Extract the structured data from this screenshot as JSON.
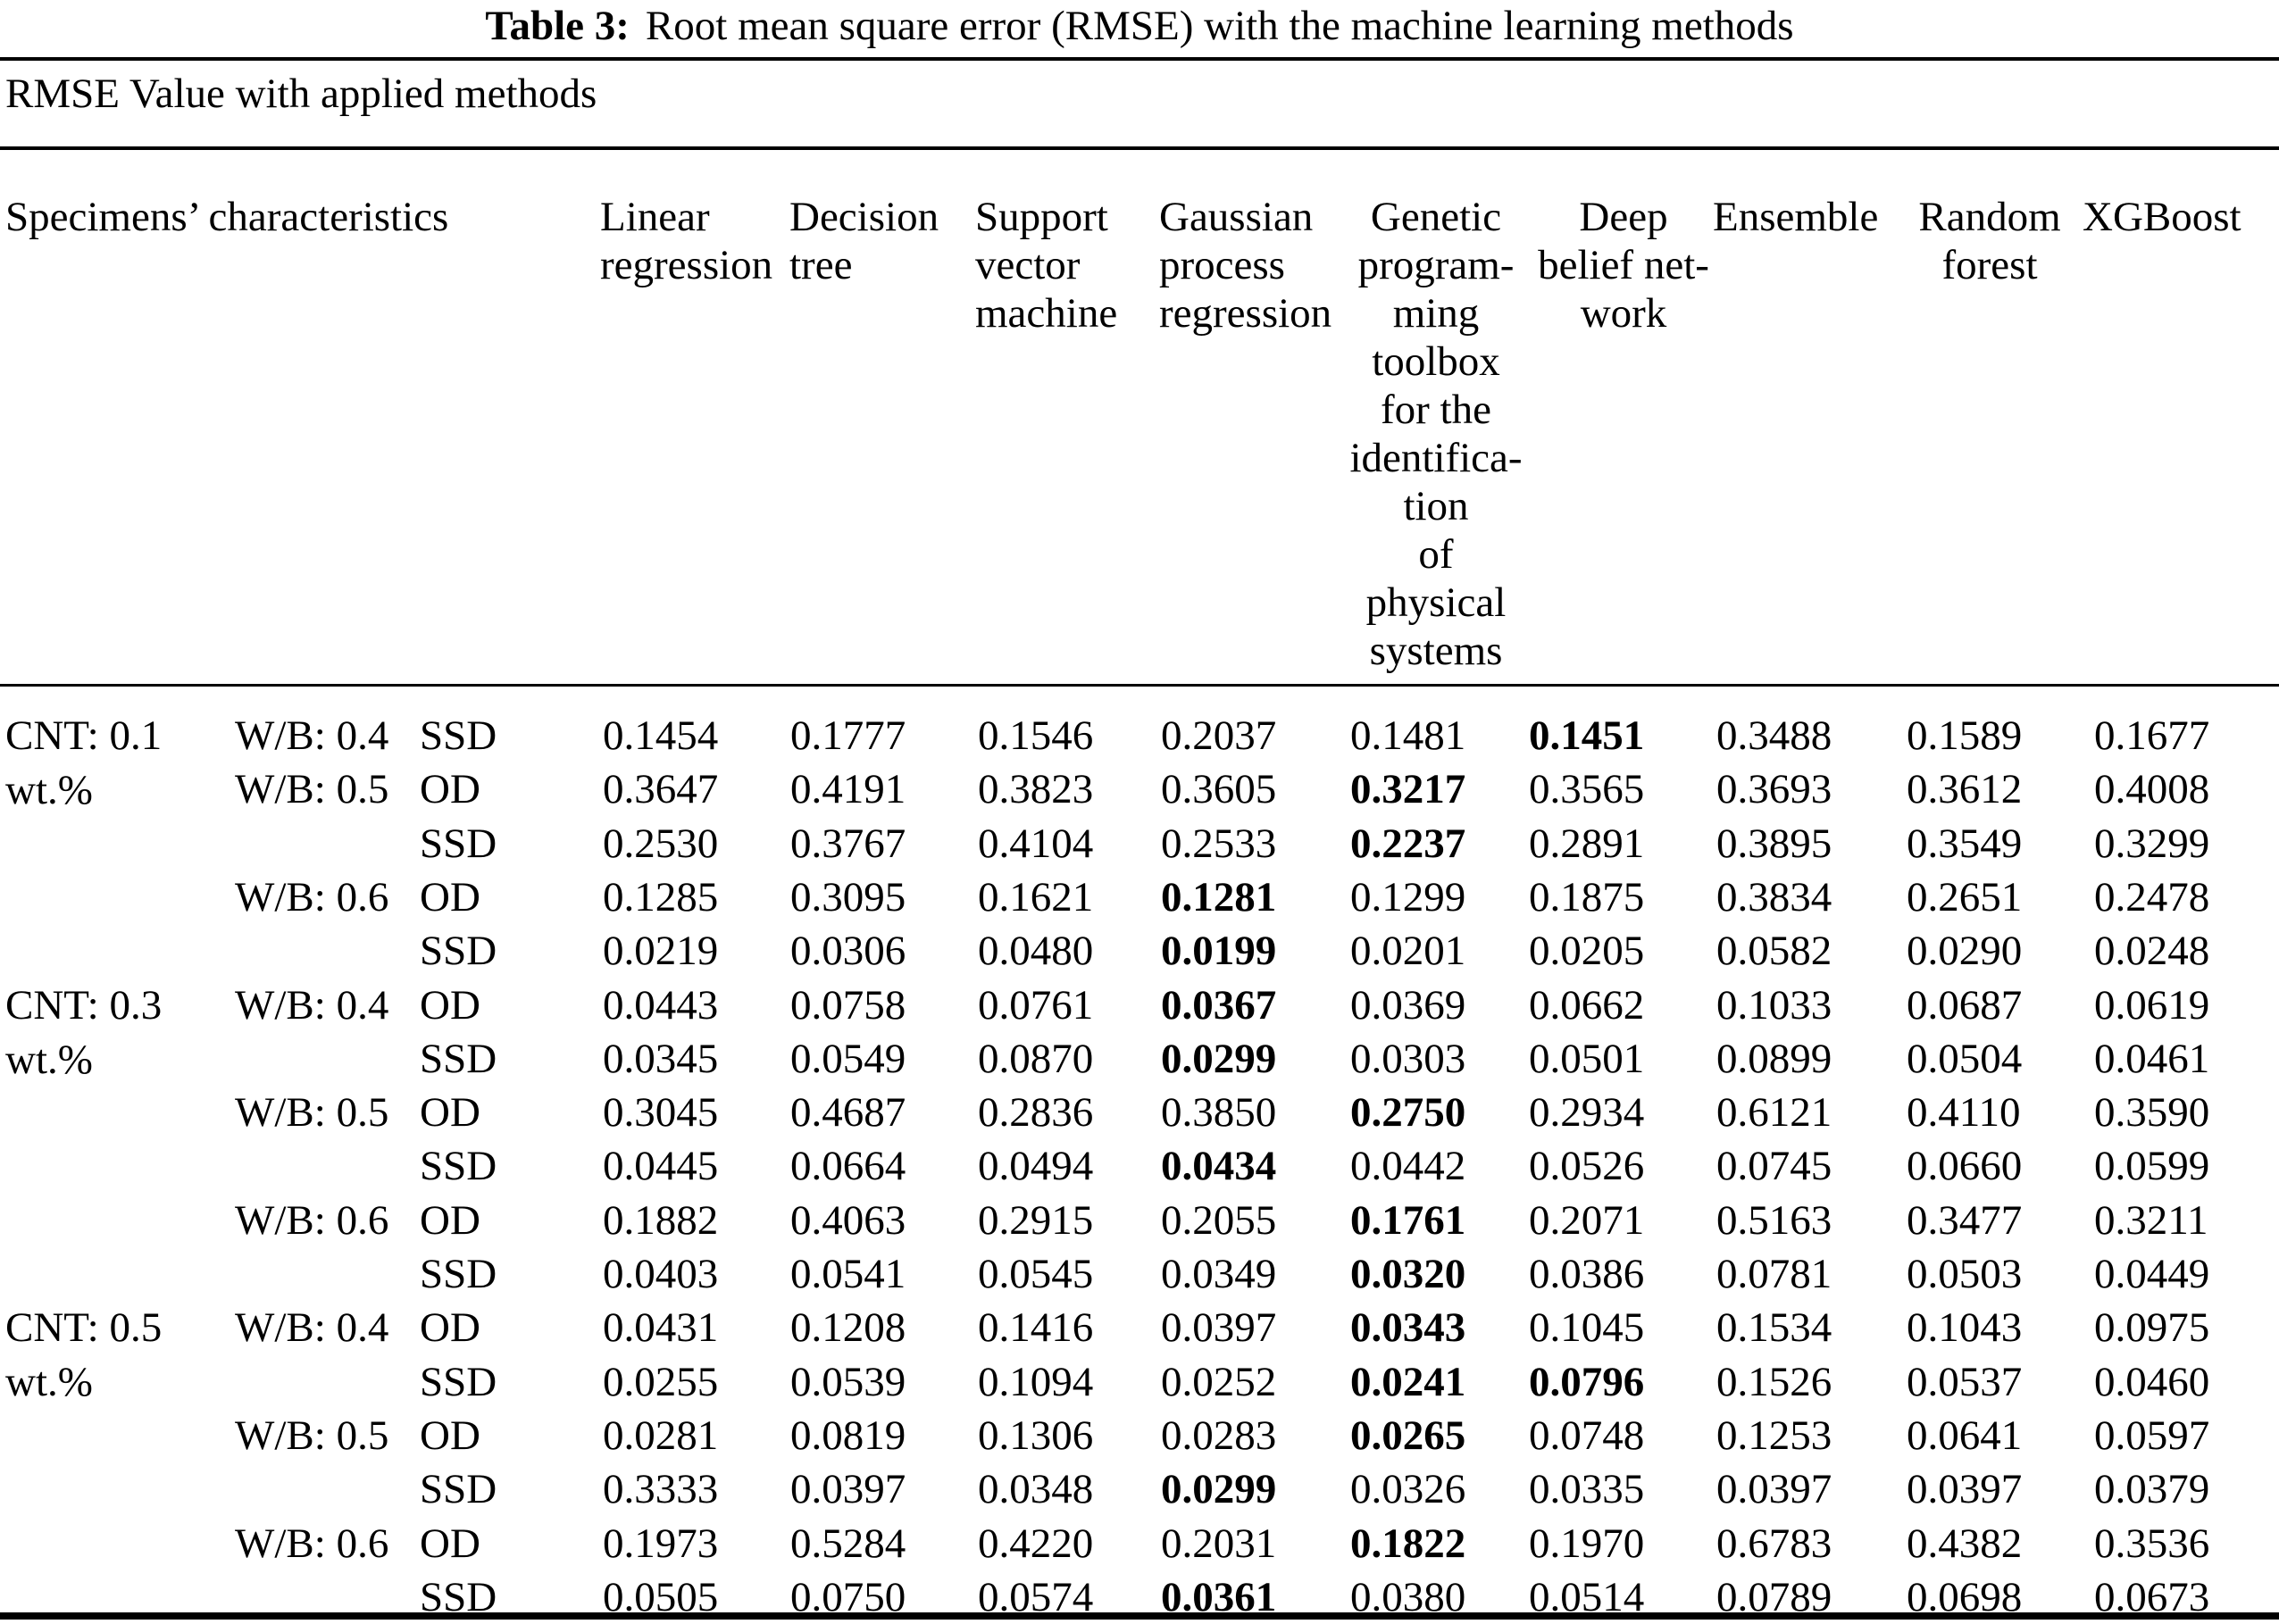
{
  "page": {
    "background_color": "#ffffff",
    "text_color": "#000000"
  },
  "table": {
    "title": {
      "label": "Table 3:",
      "text": "Root mean square error (RMSE) with the machine learning methods"
    },
    "subtitle": "RMSE Value with applied methods",
    "row_group_header": "Specimens’ characteristics",
    "method_headers": [
      {
        "name": "linear-regression",
        "lines": [
          "Linear",
          "regression"
        ],
        "align": "left"
      },
      {
        "name": "decision-tree",
        "lines": [
          "Decision",
          "tree"
        ],
        "align": "left"
      },
      {
        "name": "support-vector-machine",
        "lines": [
          "Support",
          "vector",
          "machine"
        ],
        "align": "left"
      },
      {
        "name": "gaussian-process-regression",
        "lines": [
          "Gaussian",
          "process",
          "regression"
        ],
        "align": "left"
      },
      {
        "name": "genetic-programming-toolbox",
        "lines": [
          "Genetic",
          "program-",
          "ming",
          "toolbox",
          "for the",
          "identifica-",
          "tion",
          "of",
          "physical",
          "systems"
        ],
        "align": "center"
      },
      {
        "name": "deep-belief-network",
        "lines": [
          "Deep",
          "belief net-",
          "work"
        ],
        "align": "center"
      },
      {
        "name": "ensemble",
        "lines": [
          "Ensemble"
        ],
        "align": "left"
      },
      {
        "name": "random-forest",
        "lines": [
          "Random",
          "forest"
        ],
        "align": "center"
      },
      {
        "name": "xgboost",
        "lines": [
          "XGBoost"
        ],
        "align": "left"
      }
    ],
    "rows": [
      {
        "cnt": [
          "CNT: 0.1",
          "wt.%"
        ],
        "wb": "W/B: 0.4",
        "cond": "SSD",
        "values": [
          "0.1454",
          "0.1777",
          "0.1546",
          "0.2037",
          "0.1481",
          "0.1451",
          "0.3488",
          "0.1589",
          "0.1677"
        ],
        "bold": [
          5
        ]
      },
      {
        "wb": "W/B: 0.5",
        "cond": "OD",
        "values": [
          "0.3647",
          "0.4191",
          "0.3823",
          "0.3605",
          "0.3217",
          "0.3565",
          "0.3693",
          "0.3612",
          "0.4008"
        ],
        "bold": [
          4
        ]
      },
      {
        "cond": "SSD",
        "values": [
          "0.2530",
          "0.3767",
          "0.4104",
          "0.2533",
          "0.2237",
          "0.2891",
          "0.3895",
          "0.3549",
          "0.3299"
        ],
        "bold": [
          4
        ]
      },
      {
        "wb": "W/B: 0.6",
        "cond": "OD",
        "values": [
          "0.1285",
          "0.3095",
          "0.1621",
          "0.1281",
          "0.1299",
          "0.1875",
          "0.3834",
          "0.2651",
          "0.2478"
        ],
        "bold": [
          3
        ]
      },
      {
        "cond": "SSD",
        "values": [
          "0.0219",
          "0.0306",
          "0.0480",
          "0.0199",
          "0.0201",
          "0.0205",
          "0.0582",
          "0.0290",
          "0.0248"
        ],
        "bold": [
          3
        ]
      },
      {
        "cnt": [
          "CNT: 0.3",
          "wt.%"
        ],
        "wb": "W/B: 0.4",
        "cond": "OD",
        "values": [
          "0.0443",
          "0.0758",
          "0.0761",
          "0.0367",
          "0.0369",
          "0.0662",
          "0.1033",
          "0.0687",
          "0.0619"
        ],
        "bold": [
          3
        ]
      },
      {
        "cond": "SSD",
        "values": [
          "0.0345",
          "0.0549",
          "0.0870",
          "0.0299",
          "0.0303",
          "0.0501",
          "0.0899",
          "0.0504",
          "0.0461"
        ],
        "bold": [
          3
        ]
      },
      {
        "wb": "W/B: 0.5",
        "cond": "OD",
        "values": [
          "0.3045",
          "0.4687",
          "0.2836",
          "0.3850",
          "0.2750",
          "0.2934",
          "0.6121",
          "0.4110",
          "0.3590"
        ],
        "bold": [
          4
        ]
      },
      {
        "cond": "SSD",
        "values": [
          "0.0445",
          "0.0664",
          "0.0494",
          "0.0434",
          "0.0442",
          "0.0526",
          "0.0745",
          "0.0660",
          "0.0599"
        ],
        "bold": [
          3
        ]
      },
      {
        "wb": "W/B: 0.6",
        "cond": "OD",
        "values": [
          "0.1882",
          "0.4063",
          "0.2915",
          "0.2055",
          "0.1761",
          "0.2071",
          "0.5163",
          "0.3477",
          "0.3211"
        ],
        "bold": [
          4
        ]
      },
      {
        "cond": "SSD",
        "values": [
          "0.0403",
          "0.0541",
          "0.0545",
          "0.0349",
          "0.0320",
          "0.0386",
          "0.0781",
          "0.0503",
          "0.0449"
        ],
        "bold": [
          4
        ]
      },
      {
        "cnt": [
          "CNT: 0.5",
          "wt.%"
        ],
        "wb": "W/B: 0.4",
        "cond": "OD",
        "values": [
          "0.0431",
          "0.1208",
          "0.1416",
          "0.0397",
          "0.0343",
          "0.1045",
          "0.1534",
          "0.1043",
          "0.0975"
        ],
        "bold": [
          4
        ]
      },
      {
        "cond": "SSD",
        "values": [
          "0.0255",
          "0.0539",
          "0.1094",
          "0.0252",
          "0.0241",
          "0.0796",
          "0.1526",
          "0.0537",
          "0.0460"
        ],
        "bold": [
          4,
          5
        ]
      },
      {
        "wb": "W/B: 0.5",
        "cond": "OD",
        "values": [
          "0.0281",
          "0.0819",
          "0.1306",
          "0.0283",
          "0.0265",
          "0.0748",
          "0.1253",
          "0.0641",
          "0.0597"
        ],
        "bold": [
          4
        ]
      },
      {
        "cond": "SSD",
        "values": [
          "0.3333",
          "0.0397",
          "0.0348",
          "0.0299",
          "0.0326",
          "0.0335",
          "0.0397",
          "0.0397",
          "0.0379"
        ],
        "bold": [
          3
        ]
      },
      {
        "wb": "W/B: 0.6",
        "cond": "OD",
        "values": [
          "0.1973",
          "0.5284",
          "0.4220",
          "0.2031",
          "0.1822",
          "0.1970",
          "0.6783",
          "0.4382",
          "0.3536"
        ],
        "bold": [
          4
        ]
      },
      {
        "cond": "SSD",
        "values": [
          "0.0505",
          "0.0750",
          "0.0574",
          "0.0361",
          "0.0380",
          "0.0514",
          "0.0789",
          "0.0698",
          "0.0673"
        ],
        "bold": [
          3
        ]
      }
    ]
  }
}
